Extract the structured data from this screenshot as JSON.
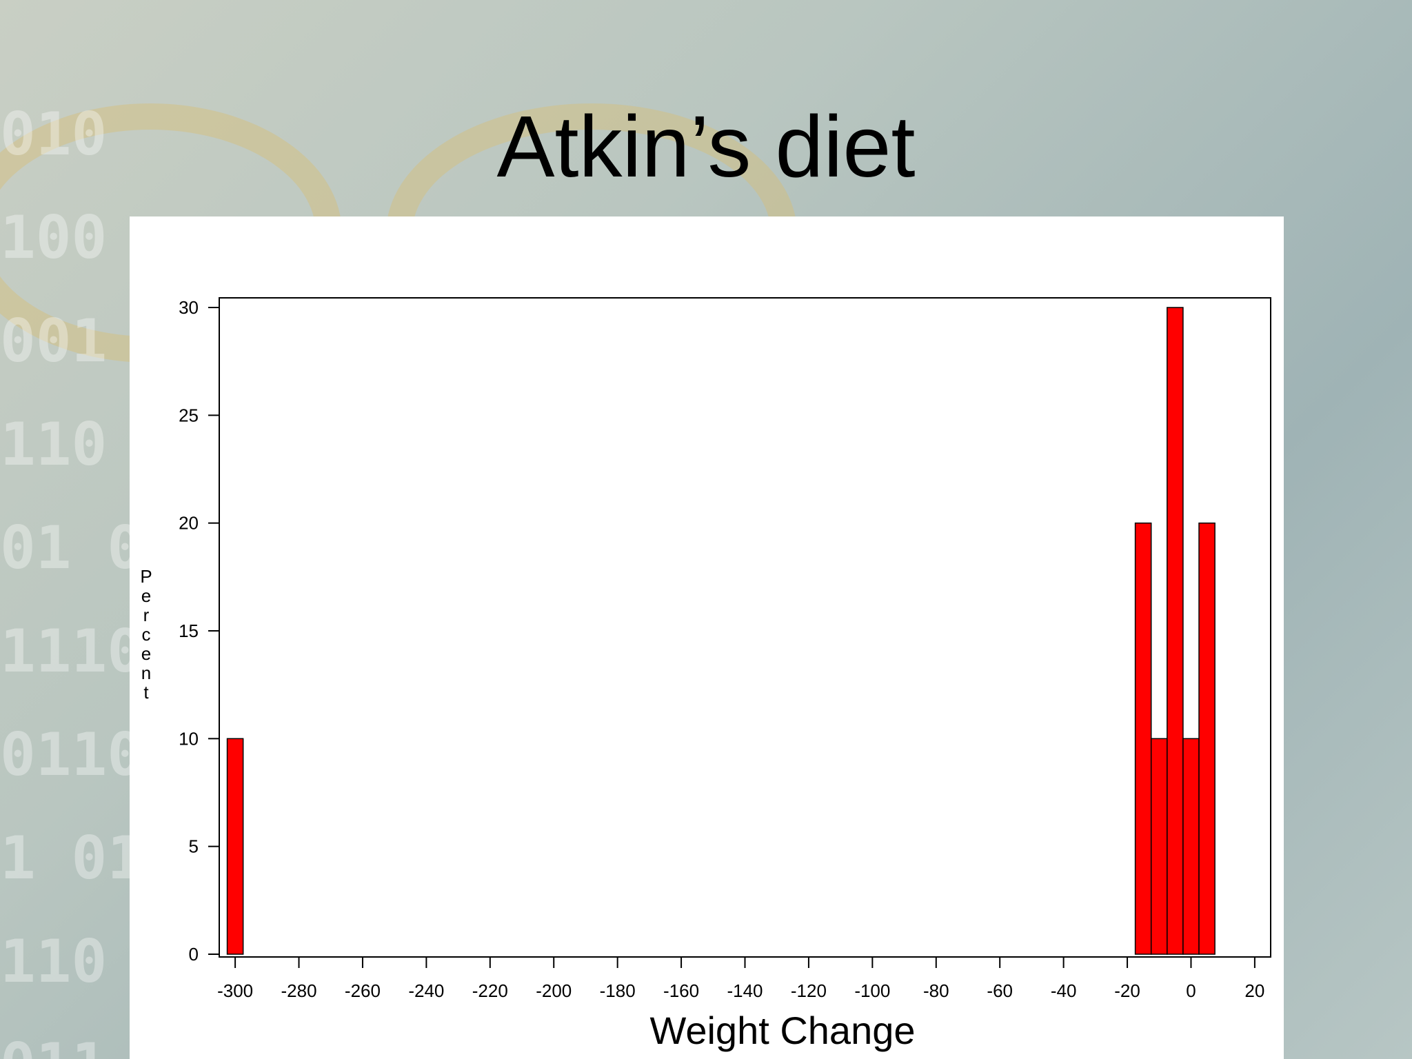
{
  "slide": {
    "title": "Atkin’s diet"
  },
  "chart_data": {
    "type": "bar",
    "title": "",
    "xlabel": "Weight Change",
    "ylabel": "Percent",
    "xlim": [
      -305,
      25
    ],
    "ylim": [
      0,
      30.5
    ],
    "xticks": [
      -300,
      -280,
      -260,
      -240,
      -220,
      -200,
      -180,
      -160,
      -140,
      -120,
      -100,
      -80,
      -60,
      -40,
      -20,
      0,
      20
    ],
    "yticks": [
      0,
      5,
      10,
      15,
      20,
      25,
      30
    ],
    "bin_width": 5,
    "bins": [
      {
        "start": -302.5,
        "end": -297.5,
        "value": 10
      },
      {
        "start": -17.5,
        "end": -12.5,
        "value": 20
      },
      {
        "start": -12.5,
        "end": -7.5,
        "value": 10
      },
      {
        "start": -7.5,
        "end": -2.5,
        "value": 30
      },
      {
        "start": -2.5,
        "end": 2.5,
        "value": 10
      },
      {
        "start": 2.5,
        "end": 7.5,
        "value": 20
      }
    ],
    "bar_color": "#ff0000",
    "grid": false
  }
}
